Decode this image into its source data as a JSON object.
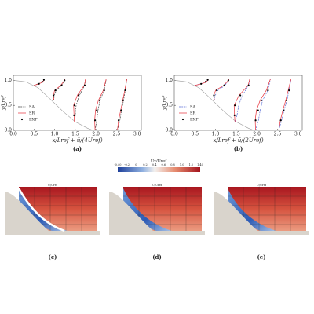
{
  "chart_data": [
    {
      "type": "line",
      "caption": "(a)",
      "xlabel": "x/Lref + ū/(4Uref)",
      "ylabel": "y/Lref",
      "xlim": [
        0,
        3.1
      ],
      "ylim": [
        0,
        1.1
      ],
      "xticks": [
        {
          "value": 0,
          "label": "0.0"
        },
        0.5,
        {
          "value": 1,
          "label": "1.0"
        },
        1.5,
        {
          "value": 2,
          "label": "2.0"
        },
        2.5,
        {
          "value": 3,
          "label": "3.0"
        }
      ],
      "yticks": [
        {
          "value": 0,
          "label": "0.0"
        },
        0.5,
        {
          "value": 1,
          "label": "1.0"
        }
      ],
      "legend": "lower left",
      "hill": {
        "color": "#9a9a9a",
        "x": [
          0,
          0.3,
          0.6,
          0.9,
          1.2,
          1.5,
          1.8,
          1.93,
          3.1
        ],
        "values": [
          1.0,
          0.97,
          0.85,
          0.62,
          0.38,
          0.17,
          0.04,
          0,
          0
        ]
      },
      "series": [
        {
          "name": "SA",
          "color": "#444444",
          "mode": "dashed",
          "x": [
            0.5,
            0.6,
            0.69,
            0.74,
            0.75,
            null,
            0.98,
            0.99,
            1.04,
            1.17,
            1.24,
            1.25,
            null,
            1.48,
            1.5,
            1.52,
            1.6,
            1.73,
            1.75,
            null,
            1.98,
            2.02,
            2.05,
            2.1,
            2.2,
            2.25,
            null,
            2.52,
            2.58,
            2.62,
            2.67,
            2.71,
            2.75
          ],
          "values": [
            0.9,
            0.93,
            0.96,
            1.0,
            1.03,
            null,
            0.6,
            0.7,
            0.8,
            0.9,
            1.0,
            1.03,
            null,
            0.17,
            0.3,
            0.5,
            0.7,
            0.9,
            1.03,
            null,
            0,
            0.2,
            0.4,
            0.6,
            0.8,
            1.03,
            null,
            0,
            0.2,
            0.4,
            0.6,
            0.8,
            1.03
          ]
        },
        {
          "name": "SR",
          "color": "#e8303a",
          "mode": "solid",
          "x": [
            0.5,
            0.62,
            0.7,
            0.74,
            0.75,
            null,
            0.98,
            0.97,
            1.0,
            1.15,
            1.24,
            1.25,
            null,
            1.48,
            1.47,
            1.46,
            1.55,
            1.72,
            1.75,
            null,
            1.98,
            1.97,
            1.99,
            2.06,
            2.18,
            2.25,
            null,
            2.52,
            2.55,
            2.6,
            2.65,
            2.7,
            2.75
          ],
          "values": [
            0.9,
            0.93,
            0.96,
            1.0,
            1.03,
            null,
            0.6,
            0.7,
            0.8,
            0.9,
            1.0,
            1.03,
            null,
            0.17,
            0.3,
            0.5,
            0.7,
            0.9,
            1.03,
            null,
            0,
            0.2,
            0.4,
            0.6,
            0.8,
            1.03,
            null,
            0,
            0.2,
            0.4,
            0.6,
            0.8,
            1.03
          ]
        },
        {
          "name": "EXP",
          "color": "#000000",
          "mode": "markers",
          "x": [
            0.62,
            0.7,
            0.74,
            0.97,
            1.02,
            1.17,
            1.24,
            1.47,
            1.48,
            1.58,
            1.73,
            1.98,
            2.02,
            2.09,
            2.2,
            2.55,
            2.61,
            2.66,
            2.71
          ],
          "values": [
            0.93,
            0.97,
            1.01,
            0.7,
            0.8,
            0.9,
            1.0,
            0.3,
            0.5,
            0.7,
            0.9,
            0.2,
            0.4,
            0.6,
            0.8,
            0.2,
            0.4,
            0.6,
            0.8
          ]
        }
      ]
    },
    {
      "type": "line",
      "caption": "(b)",
      "xlabel": "x/Lref + ū/(2Uref)",
      "ylabel": "y/Lref",
      "xlim": [
        0,
        3.1
      ],
      "ylim": [
        0,
        1.1
      ],
      "xticks": [
        {
          "value": 0,
          "label": "0.0"
        },
        0.5,
        {
          "value": 1,
          "label": "1.0"
        },
        1.5,
        {
          "value": 2,
          "label": "2.0"
        },
        2.5,
        {
          "value": 3,
          "label": "3.0"
        }
      ],
      "yticks": [
        {
          "value": 0,
          "label": "0.0"
        },
        0.5,
        {
          "value": 1,
          "label": "1.0"
        }
      ],
      "legend": "lower left",
      "hill": {
        "color": "#9a9a9a",
        "x": [
          0,
          0.3,
          0.6,
          0.9,
          1.2,
          1.5,
          1.8,
          1.93,
          3.1
        ],
        "values": [
          1.0,
          0.97,
          0.85,
          0.62,
          0.38,
          0.17,
          0.04,
          0,
          0
        ]
      },
      "series": [
        {
          "name": "SA",
          "color": "#5b6fd6",
          "mode": "dashed",
          "x": [
            0.5,
            0.64,
            0.75,
            0.81,
            0.83,
            null,
            0.97,
            0.99,
            1.06,
            1.23,
            1.31,
            1.33,
            null,
            1.47,
            1.52,
            1.56,
            1.65,
            1.8,
            1.83,
            null,
            1.97,
            2.04,
            2.08,
            2.14,
            2.27,
            2.33,
            null,
            2.53,
            2.6,
            2.66,
            2.73,
            2.78,
            2.83
          ],
          "values": [
            0.9,
            0.93,
            0.96,
            1.0,
            1.03,
            null,
            0.6,
            0.7,
            0.8,
            0.9,
            1.0,
            1.03,
            null,
            0.17,
            0.3,
            0.5,
            0.7,
            0.9,
            1.03,
            null,
            0,
            0.2,
            0.4,
            0.6,
            0.8,
            1.03,
            null,
            0,
            0.2,
            0.4,
            0.6,
            0.8,
            1.03
          ]
        },
        {
          "name": "SR",
          "color": "#e8303a",
          "mode": "solid",
          "x": [
            0.5,
            0.66,
            0.76,
            0.81,
            0.83,
            null,
            0.97,
            0.96,
            1.0,
            1.2,
            1.31,
            1.33,
            null,
            1.47,
            1.46,
            1.45,
            1.57,
            1.79,
            1.83,
            null,
            1.97,
            1.96,
            1.99,
            2.08,
            2.23,
            2.33,
            null,
            2.53,
            2.57,
            2.63,
            2.7,
            2.76,
            2.83
          ],
          "values": [
            0.9,
            0.93,
            0.96,
            1.0,
            1.03,
            null,
            0.6,
            0.7,
            0.8,
            0.9,
            1.0,
            1.03,
            null,
            0.17,
            0.3,
            0.5,
            0.7,
            0.9,
            1.03,
            null,
            0,
            0.2,
            0.4,
            0.6,
            0.8,
            1.03,
            null,
            0,
            0.2,
            0.4,
            0.6,
            0.8,
            1.03
          ]
        },
        {
          "name": "EXP",
          "color": "#000000",
          "mode": "markers",
          "x": [
            0.65,
            0.76,
            0.81,
            0.96,
            1.03,
            1.21,
            1.31,
            1.46,
            1.47,
            1.6,
            1.8,
            1.97,
            2.03,
            2.11,
            2.27,
            2.58,
            2.65,
            2.72,
            2.78
          ],
          "values": [
            0.93,
            0.97,
            1.01,
            0.7,
            0.8,
            0.9,
            1.0,
            0.3,
            0.5,
            0.7,
            0.9,
            0.2,
            0.4,
            0.6,
            0.8,
            0.2,
            0.4,
            0.6,
            0.8
          ]
        }
      ]
    }
  ],
  "colorbar": {
    "title": "Ux/Uref",
    "ticks": [
      "-0.40",
      "-0.2",
      "0",
      "0.2",
      "0.4",
      "0.6",
      "0.8",
      "1.0",
      "1.2",
      "1.40"
    ]
  },
  "panels": [
    {
      "caption": "(c)",
      "axis_label": "U/Uref"
    },
    {
      "caption": "(d)",
      "axis_label": "U/Uref"
    },
    {
      "caption": "(e)",
      "axis_label": "U/Uref"
    }
  ]
}
